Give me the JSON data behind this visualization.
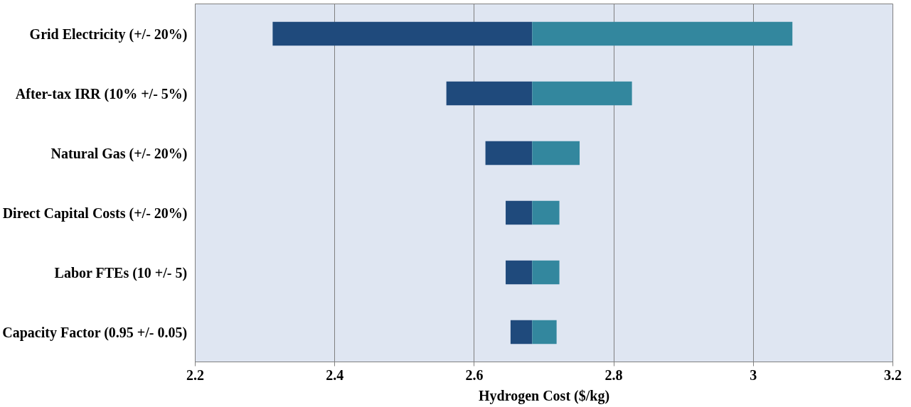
{
  "chart_data": {
    "type": "bar",
    "orientation": "horizontal",
    "categories": [
      "Grid Electricity (+/- 20%)",
      "After-tax IRR (10% +/- 5%)",
      "Natural Gas (+/- 20%)",
      "Direct Capital Costs (+/- 20%)",
      "Labor FTEs (10 +/- 5)",
      "Capacity Factor (0.95 +/- 0.05)"
    ],
    "series": [
      {
        "color": "#1f4a7c",
        "base": [
          2.311,
          2.56,
          2.616,
          2.645,
          2.645,
          2.652
        ],
        "values": [
          0.372,
          0.123,
          0.067,
          0.038,
          0.038,
          0.031
        ]
      },
      {
        "color": "#33879e",
        "base": [
          2.683,
          2.683,
          2.683,
          2.683,
          2.683,
          2.683
        ],
        "values": [
          0.373,
          0.143,
          0.068,
          0.039,
          0.039,
          0.035
        ]
      }
    ],
    "xlabel": "Hydrogen Cost ($/kg)",
    "xlim": [
      2.2,
      3.2
    ],
    "xticks": [
      2.2,
      2.4,
      2.6,
      2.8,
      3,
      3.2
    ],
    "grid": "x"
  }
}
